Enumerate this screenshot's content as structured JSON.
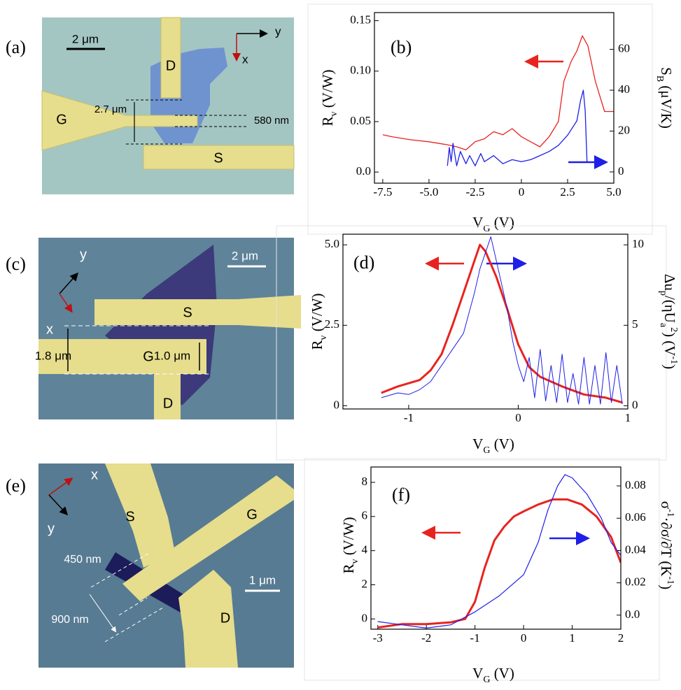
{
  "panels": [
    {
      "label": "(a)",
      "scale_bar": "2 μm",
      "axis_x": "x",
      "axis_y": "y",
      "electrodes": [
        "D",
        "G",
        "S"
      ],
      "dimensions": [
        "2.7 μm",
        "580 nm"
      ]
    },
    {
      "label": "(c)",
      "scale_bar": "2 μm",
      "axis_x": "x",
      "axis_y": "y",
      "electrodes": [
        "S",
        "G",
        "D"
      ],
      "dimensions": [
        "1.8 μm",
        "1.0 μm"
      ]
    },
    {
      "label": "(e)",
      "scale_bar": "1 μm",
      "axis_x": "x",
      "axis_y": "y",
      "electrodes": [
        "S",
        "G",
        "D"
      ],
      "dimensions": [
        "450 nm",
        "900 nm"
      ]
    }
  ],
  "chart_data": [
    {
      "type": "line",
      "panel_label": "(b)",
      "x_label": [
        "V",
        "G",
        " (V)"
      ],
      "y_label": [
        "R",
        "v",
        " (V/W)"
      ],
      "y2_label": [
        "S",
        "B",
        " (μV/K)"
      ],
      "xlim": [
        -7.95,
        5.0
      ],
      "xticks": [
        -7.5,
        {
          "value": -5,
          "label": "-5.0"
        },
        -2.5,
        0,
        2.5,
        {
          "value": 5,
          "label": "5.0"
        }
      ],
      "ylim": [
        -0.011,
        0.158
      ],
      "yticks": [
        {
          "value": 0,
          "label": "0.0"
        },
        0.05,
        {
          "value": 0.1,
          "label": "0.10"
        },
        0.15
      ],
      "y2lim": [
        -5.5,
        78
      ],
      "y2ticks": [
        0,
        20,
        40,
        60
      ],
      "series": [
        {
          "color": "#e8231f",
          "x": [
            -7.5,
            -7,
            -6,
            -5,
            -4,
            -3.5,
            -3,
            -2.5,
            -2,
            -1.5,
            -1,
            -0.5,
            0,
            0.5,
            1,
            1.5,
            2,
            2.3,
            2.7,
            3,
            3.3,
            3.6,
            4,
            4.5,
            5
          ],
          "values": [
            0.037,
            0.035,
            0.032,
            0.03,
            0.027,
            0.025,
            0.022,
            0.03,
            0.033,
            0.04,
            0.037,
            0.043,
            0.035,
            0.03,
            0.025,
            0.035,
            0.05,
            0.09,
            0.11,
            0.12,
            0.135,
            0.125,
            0.09,
            0.06,
            0.06
          ]
        },
        {
          "color": "#1f1fe8",
          "axis": "y2",
          "x": [
            -4,
            -3.9,
            -3.8,
            -3.7,
            -3.5,
            -3.3,
            -3,
            -2.8,
            -2.5,
            -2.2,
            -2,
            -1.5,
            -1,
            -0.5,
            0,
            0.5,
            1,
            1.5,
            2,
            2.5,
            3,
            3.2,
            3.35,
            3.45,
            3.55
          ],
          "values": [
            3,
            12,
            5,
            14,
            3,
            10,
            4,
            8,
            3,
            9,
            5,
            8,
            4,
            6,
            5,
            6,
            8,
            10,
            13,
            18,
            25,
            35,
            40,
            30,
            5
          ]
        }
      ]
    },
    {
      "type": "line",
      "panel_label": "(d)",
      "x_label": [
        "V",
        "G",
        " (V)"
      ],
      "y_label": [
        "R",
        "v",
        " (V/W)"
      ],
      "y2_label": [
        "Δu",
        "p",
        "/(ηU",
        "a",
        "2",
        ") (V",
        "-1",
        ")"
      ],
      "xlim": [
        -1.6,
        1.0
      ],
      "xticks": [
        -1,
        0,
        1
      ],
      "ylim": [
        -0.1,
        5.33
      ],
      "yticks": [
        0,
        2.5,
        {
          "value": 5,
          "label": "5.0"
        }
      ],
      "y2lim": [
        -0.2,
        10.66
      ],
      "y2ticks": [
        0,
        5,
        10
      ],
      "series": [
        {
          "color": "#e8231f",
          "x": [
            -1.25,
            -1.1,
            -0.9,
            -0.8,
            -0.7,
            -0.6,
            -0.5,
            -0.4,
            -0.35,
            -0.3,
            -0.2,
            -0.1,
            0,
            0.1,
            0.2,
            0.4,
            0.6,
            0.8,
            0.95
          ],
          "values": [
            0.4,
            0.6,
            0.8,
            1.1,
            1.6,
            2.5,
            3.5,
            4.5,
            5.0,
            4.8,
            4.0,
            3.0,
            1.9,
            1.2,
            0.9,
            0.6,
            0.35,
            0.25,
            0.1
          ]
        },
        {
          "color": "#1f1fe8",
          "axis": "y2",
          "x": [
            -1.25,
            -1.1,
            -1,
            -0.9,
            -0.8,
            -0.7,
            -0.6,
            -0.5,
            -0.4,
            -0.35,
            -0.3,
            -0.25,
            -0.2,
            -0.15,
            -0.1,
            -0.05,
            0,
            0.05,
            0.1,
            0.15,
            0.2,
            0.25,
            0.3,
            0.35,
            0.4,
            0.45,
            0.5,
            0.55,
            0.6,
            0.65,
            0.7,
            0.75,
            0.8,
            0.85,
            0.9,
            0.95
          ],
          "values": [
            0.5,
            0.8,
            0.7,
            1,
            1.5,
            2.5,
            3.5,
            4.5,
            7,
            8.5,
            9.5,
            10.5,
            9,
            7.5,
            6,
            4,
            2.5,
            1.5,
            3,
            0.5,
            3.5,
            0.3,
            2.5,
            0.2,
            3.2,
            0.2,
            2,
            0.1,
            3,
            0.1,
            2.5,
            0.1,
            3.3,
            0.2,
            2.5,
            0.1
          ]
        }
      ]
    },
    {
      "type": "line",
      "panel_label": "(f)",
      "x_label": [
        "V",
        "G",
        " (V)"
      ],
      "y_label": [
        "R",
        "v",
        " (V/W)"
      ],
      "y2_label": [
        "σ",
        "-1",
        "·∂σ/∂T (K",
        "-1",
        ")"
      ],
      "xlim": [
        -3.14,
        2.0
      ],
      "xticks": [
        -3,
        -2,
        -1,
        0,
        1,
        2
      ],
      "ylim": [
        -0.6,
        8.9
      ],
      "yticks": [
        0,
        2,
        4,
        6,
        8
      ],
      "y2lim": [
        -0.0087,
        0.0917
      ],
      "y2ticks": [
        {
          "value": 0,
          "label": "0.0"
        },
        0.02,
        0.04,
        0.06,
        0.08
      ],
      "series": [
        {
          "color": "#e8231f",
          "x": [
            -3,
            -2.5,
            -2,
            -1.5,
            -1.2,
            -1,
            -0.8,
            -0.6,
            -0.4,
            -0.2,
            0,
            0.3,
            0.6,
            0.9,
            1.2,
            1.5,
            1.8,
            2
          ],
          "values": [
            -0.5,
            -0.3,
            -0.3,
            -0.2,
            0,
            1,
            3,
            4.6,
            5.4,
            6,
            6.3,
            6.7,
            7,
            7,
            6.7,
            6,
            4.8,
            3.3
          ]
        },
        {
          "color": "#1f1fe8",
          "axis": "y2",
          "x": [
            -3,
            -2.5,
            -2,
            -1.5,
            -1,
            -0.5,
            0,
            0.3,
            0.5,
            0.7,
            0.85,
            1,
            1.3,
            1.6,
            1.8,
            2
          ],
          "values": [
            -0.004,
            -0.006,
            -0.008,
            -0.006,
            0.002,
            0.012,
            0.025,
            0.045,
            0.065,
            0.08,
            0.087,
            0.085,
            0.075,
            0.06,
            0.045,
            0.037
          ]
        }
      ]
    }
  ]
}
